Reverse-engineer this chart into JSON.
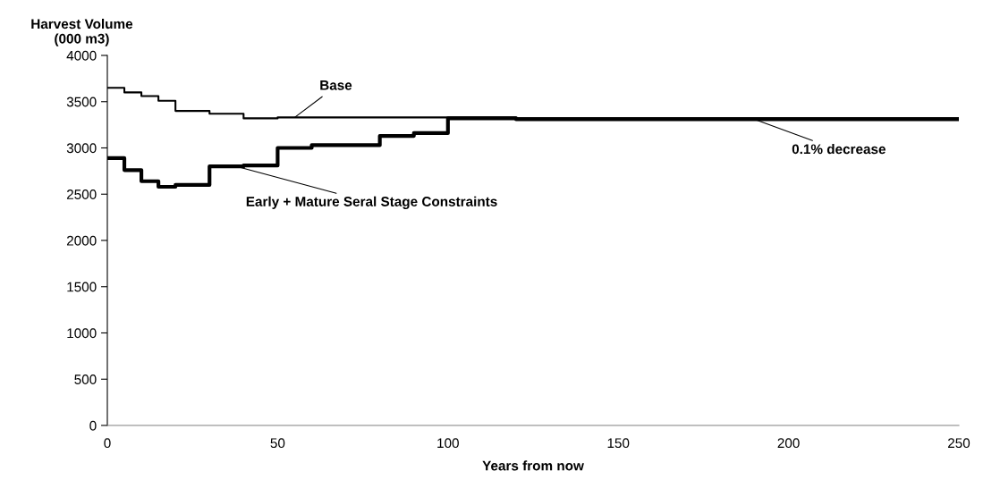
{
  "chart_data": {
    "type": "step",
    "xlabel": "Years from now",
    "ylabel": "Harvest Volume\n(000 m3)",
    "xlim": [
      0,
      250
    ],
    "xticks": [
      0,
      50,
      100,
      150,
      200,
      250
    ],
    "ylim": [
      0,
      4000
    ],
    "yticks": [
      0,
      500,
      1000,
      1500,
      2000,
      2500,
      3000,
      3500,
      4000
    ],
    "grid": false,
    "legend": false,
    "line_style": "solid",
    "marker": "none",
    "series": [
      {
        "color": "#000000",
        "x": [
          0,
          5,
          10,
          15,
          20,
          30,
          40,
          50,
          120,
          250
        ],
        "values": [
          3650,
          3600,
          3560,
          3510,
          3400,
          3370,
          3320,
          3330,
          3320,
          3320
        ]
      },
      {
        "color": "#000000",
        "x": [
          0,
          5,
          10,
          15,
          20,
          30,
          40,
          50,
          60,
          80,
          90,
          100,
          120,
          250
        ],
        "values": [
          2890,
          2760,
          2640,
          2580,
          2600,
          2800,
          2810,
          3000,
          3030,
          3130,
          3160,
          3320,
          3310,
          3310
        ]
      }
    ],
    "annotations": [
      {
        "text": "Base",
        "x": 55,
        "y": 3330
      },
      {
        "text": "0.1% decrease",
        "x": 190,
        "y": 3310
      },
      {
        "text": "Early + Mature Seral Stage Constraints",
        "x": 37,
        "y": 2810
      }
    ]
  }
}
